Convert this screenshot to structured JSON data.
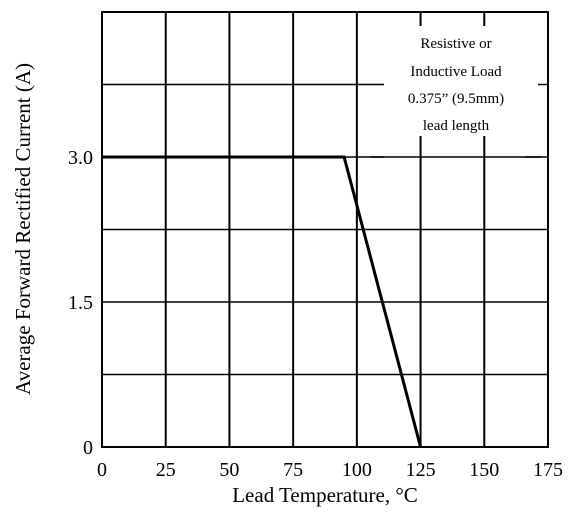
{
  "chart_data": {
    "type": "line",
    "xlabel": "Lead Temperature, °C",
    "ylabel": "Average Forward Rectified Current (A)",
    "xlim": [
      0,
      175
    ],
    "ylim": [
      0,
      4.5
    ],
    "x_ticks": [
      0,
      25,
      50,
      75,
      100,
      125,
      150,
      175
    ],
    "x_tick_labels": [
      "0",
      "25",
      "50",
      "75",
      "100",
      "125",
      "150",
      "175"
    ],
    "y_ticks": [
      0,
      1.5,
      3.0
    ],
    "y_tick_labels": [
      "0",
      "1.5",
      "3.0"
    ],
    "grid": true,
    "series": [
      {
        "x": [
          0,
          95,
          125
        ],
        "y": [
          3.0,
          3.0,
          0
        ]
      }
    ],
    "annotation": [
      "Resistive or",
      "Inductive Load",
      "0.375” (9.5mm)",
      "lead length"
    ]
  }
}
